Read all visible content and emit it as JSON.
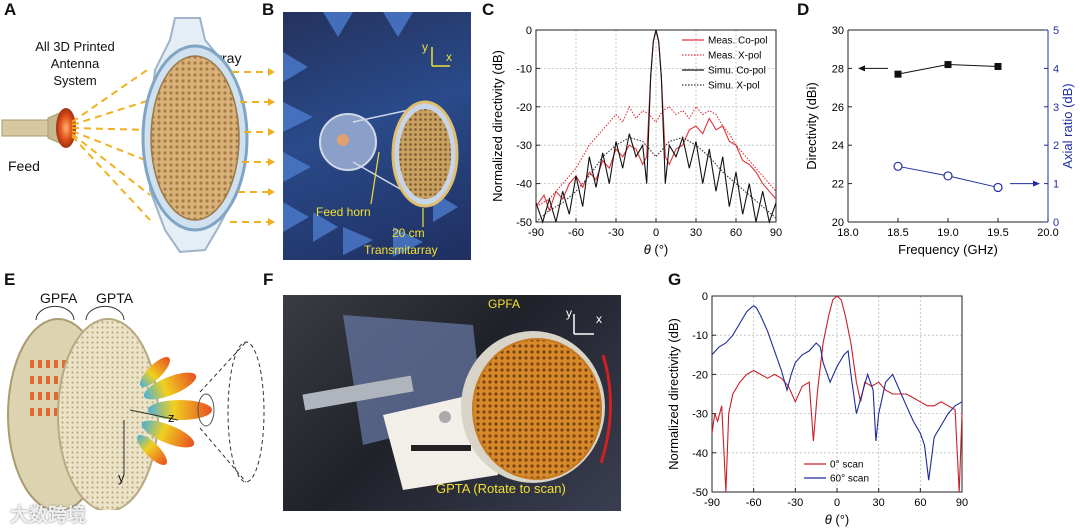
{
  "panels": {
    "A": {
      "letter": "A",
      "title_lines": [
        "All 3D Printed",
        "Antenna",
        "System"
      ],
      "array_label": "Array",
      "feed_label": "Feed"
    },
    "B": {
      "letter": "B",
      "axis_y": "y",
      "axis_x": "x",
      "feed_horn_label": "Feed horn",
      "size_label": "20 cm",
      "transmitarray_label": "Transmitarray"
    },
    "C": {
      "letter": "C"
    },
    "D": {
      "letter": "D"
    },
    "E": {
      "letter": "E",
      "gpfa_label": "GPFA",
      "gpta_label": "GPTA",
      "axis_z": "z",
      "axis_y": "y"
    },
    "F": {
      "letter": "F",
      "axis_y": "y",
      "axis_x": "x",
      "gpfa_label": "GPFA",
      "gpta_label": "GPTA (Rotate to scan)"
    },
    "G": {
      "letter": "G"
    }
  },
  "watermark": "大数跨境",
  "colors": {
    "meas_co": "#e0343a",
    "meas_x": "#e0343a",
    "simu_co": "#111111",
    "simu_x": "#333333",
    "axial_blue": "#1f2fa0",
    "scan0": "#c8202a",
    "scan60": "#1f2a9a",
    "grid": "#bdbdbd"
  },
  "chart_data": [
    {
      "id": "C",
      "type": "line",
      "xlabel": "θ (°)",
      "ylabel": "Normalized directivity (dB)",
      "xlim": [
        -90,
        90
      ],
      "ylim": [
        -50,
        0
      ],
      "xticks": [
        "-90",
        "-60",
        "-30",
        "0",
        "30",
        "60",
        "90"
      ],
      "yticks": [
        "0",
        "-10",
        "-20",
        "-30",
        "-40",
        "-50"
      ],
      "grid": true,
      "legend_position": "top-right",
      "series": [
        {
          "name": "Meas. Co-pol",
          "style": "solid",
          "color": "#e0343a",
          "x": [
            -90,
            -84,
            -80,
            -75,
            -70,
            -65,
            -60,
            -55,
            -50,
            -45,
            -40,
            -35,
            -30,
            -25,
            -20,
            -15,
            -10,
            -7,
            -4,
            -2,
            0,
            2,
            4,
            7,
            10,
            15,
            20,
            25,
            30,
            35,
            40,
            45,
            50,
            55,
            60,
            65,
            70,
            75,
            80,
            85,
            90
          ],
          "y": [
            -46,
            -43,
            -47,
            -42,
            -44,
            -40,
            -38,
            -41,
            -37,
            -39,
            -34,
            -36,
            -31,
            -33,
            -30,
            -31,
            -35,
            -33,
            -12,
            -3,
            0,
            -3,
            -12,
            -33,
            -35,
            -31,
            -30,
            -26,
            -25,
            -27,
            -23,
            -26,
            -25,
            -29,
            -30,
            -34,
            -35,
            -37,
            -40,
            -42,
            -44
          ]
        },
        {
          "name": "Meas. X-pol",
          "style": "dotted",
          "color": "#e0343a",
          "x": [
            -90,
            -80,
            -70,
            -60,
            -50,
            -40,
            -30,
            -25,
            -20,
            -15,
            -10,
            -5,
            0,
            5,
            10,
            15,
            20,
            25,
            30,
            35,
            40,
            45,
            50,
            55,
            60,
            70,
            80,
            90
          ],
          "y": [
            -46,
            -44,
            -40,
            -36,
            -30,
            -26,
            -22,
            -24,
            -20,
            -23,
            -21,
            -22,
            -24,
            -21,
            -20,
            -22,
            -21,
            -23,
            -20,
            -22,
            -21,
            -22,
            -25,
            -27,
            -30,
            -34,
            -38,
            -42
          ]
        },
        {
          "name": "Simu. Co-pol",
          "style": "solid",
          "color": "#111111",
          "x": [
            -90,
            -85,
            -80,
            -75,
            -70,
            -65,
            -60,
            -55,
            -50,
            -45,
            -40,
            -35,
            -30,
            -25,
            -20,
            -15,
            -10,
            -7,
            -4,
            -2,
            0,
            2,
            4,
            7,
            10,
            15,
            20,
            25,
            30,
            35,
            40,
            45,
            50,
            55,
            60,
            65,
            70,
            75,
            80,
            85,
            90
          ],
          "y": [
            -45,
            -50,
            -44,
            -50,
            -42,
            -48,
            -38,
            -46,
            -33,
            -41,
            -32,
            -40,
            -29,
            -36,
            -27,
            -33,
            -30,
            -40,
            -12,
            -3,
            0,
            -3,
            -12,
            -40,
            -30,
            -33,
            -28,
            -36,
            -29,
            -40,
            -31,
            -42,
            -33,
            -46,
            -37,
            -48,
            -40,
            -50,
            -42,
            -50,
            -45
          ]
        },
        {
          "name": "Simu. X-pol",
          "style": "dotted",
          "color": "#333333",
          "x": [
            -90,
            -80,
            -70,
            -60,
            -50,
            -40,
            -30,
            -20,
            -10,
            -5,
            0,
            5,
            10,
            20,
            30,
            40,
            50,
            60,
            70,
            80,
            90
          ],
          "y": [
            -50,
            -47,
            -45,
            -42,
            -38,
            -33,
            -30,
            -28,
            -29,
            -31,
            -33,
            -31,
            -29,
            -28,
            -30,
            -33,
            -37,
            -40,
            -43,
            -46,
            -49
          ]
        }
      ]
    },
    {
      "id": "D",
      "type": "scatter",
      "xlabel": "Frequency (GHz)",
      "ylabel": "Directivity (dBi)",
      "y2label": "Axial ratio (dB)",
      "xlim": [
        18.0,
        20.0
      ],
      "ylim": [
        20,
        30
      ],
      "y2lim": [
        0,
        5
      ],
      "xticks": [
        "18.0",
        "18.5",
        "19.0",
        "19.5",
        "20.0"
      ],
      "yticks": [
        "20",
        "22",
        "24",
        "26",
        "28",
        "30"
      ],
      "y2ticks": [
        "0",
        "1",
        "2",
        "3",
        "4",
        "5"
      ],
      "grid": false,
      "series": [
        {
          "name": "",
          "axis": "left",
          "marker": "filled-square",
          "x": [
            18.5,
            19.0,
            19.5
          ],
          "y": [
            27.7,
            28.2,
            28.1
          ]
        },
        {
          "name": "",
          "axis": "right",
          "marker": "open-circle",
          "x": [
            18.5,
            19.0,
            19.5
          ],
          "y": [
            1.45,
            1.2,
            0.9
          ]
        }
      ]
    },
    {
      "id": "G",
      "type": "line",
      "xlabel": "θ (°)",
      "ylabel": "Normalized directivity (dB)",
      "xlim": [
        -90,
        90
      ],
      "ylim": [
        -50,
        0
      ],
      "xticks": [
        "-90",
        "-60",
        "-30",
        "0",
        "30",
        "60",
        "90"
      ],
      "yticks": [
        "0",
        "-10",
        "-20",
        "-30",
        "-40",
        "-50"
      ],
      "grid": true,
      "legend_position": "bottom-center",
      "series": [
        {
          "name": "0° scan",
          "color": "#c8202a",
          "x": [
            -90,
            -88,
            -86,
            -83,
            -80,
            -78,
            -75,
            -70,
            -65,
            -60,
            -55,
            -50,
            -45,
            -40,
            -35,
            -30,
            -25,
            -20,
            -17,
            -14,
            -10,
            -6,
            -3,
            0,
            3,
            6,
            10,
            14,
            17,
            20,
            25,
            30,
            35,
            40,
            45,
            50,
            55,
            60,
            65,
            70,
            75,
            80,
            85,
            88,
            90
          ],
          "y": [
            -35,
            -30,
            -32,
            -28,
            -50,
            -30,
            -25,
            -22,
            -20,
            -19,
            -20,
            -21,
            -20,
            -21,
            -23,
            -27,
            -23,
            -22,
            -37,
            -24,
            -12,
            -5,
            -1,
            0,
            -1,
            -5,
            -12,
            -22,
            -27,
            -22,
            -23,
            -22,
            -24,
            -25,
            -25,
            -25,
            -26,
            -27,
            -28,
            -28,
            -27,
            -28,
            -29,
            -50,
            -30
          ]
        },
        {
          "name": "60° scan",
          "color": "#1f2a9a",
          "x": [
            -90,
            -85,
            -80,
            -75,
            -70,
            -65,
            -62,
            -60,
            -58,
            -55,
            -50,
            -45,
            -40,
            -36,
            -33,
            -30,
            -25,
            -20,
            -15,
            -12,
            -10,
            -5,
            0,
            5,
            8,
            10,
            14,
            18,
            22,
            26,
            28,
            30,
            35,
            40,
            45,
            50,
            55,
            60,
            63,
            66,
            70,
            75,
            80,
            85,
            90
          ],
          "y": [
            -15,
            -13,
            -12,
            -10,
            -7,
            -4,
            -3,
            -2.5,
            -3,
            -5,
            -9,
            -14,
            -19,
            -24,
            -20,
            -17,
            -15,
            -14,
            -12,
            -13,
            -17,
            -22,
            -18,
            -15,
            -14,
            -20,
            -30,
            -25,
            -20,
            -24,
            -37,
            -30,
            -22,
            -20,
            -24,
            -28,
            -32,
            -35,
            -38,
            -47,
            -36,
            -33,
            -30,
            -28,
            -27
          ]
        }
      ]
    }
  ]
}
